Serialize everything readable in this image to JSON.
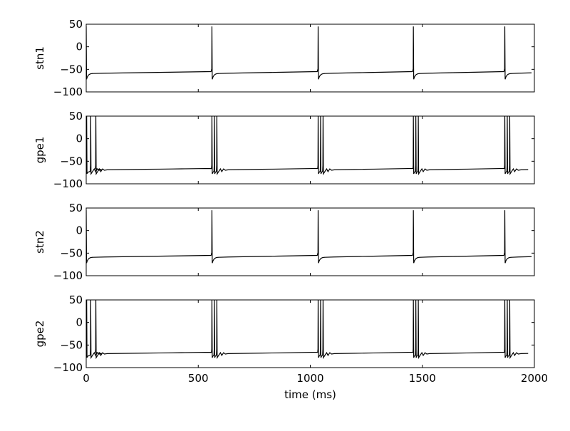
{
  "chart_data": {
    "type": "line",
    "xlabel": "time (ms)",
    "xlim": [
      0,
      2000
    ],
    "x_ticks": [
      "0",
      "500",
      "1000",
      "1500",
      "2000"
    ],
    "ylim": [
      -100,
      50
    ],
    "line_color": "#000000",
    "grid": false,
    "legend": "none",
    "panels": [
      {
        "ylabel": "stn1",
        "y_ticks": [
          "50",
          "0",
          "−50",
          "−100"
        ],
        "neuron": "stn",
        "baseline_mv": -59,
        "peak_mv": 45,
        "trough_mv": -72,
        "initial_spike_ms": [
          0
        ],
        "burst_onsets_ms": [
          561,
          1035,
          1460,
          1868
        ],
        "spikes_per_burst": 1
      },
      {
        "ylabel": "gpe1",
        "y_ticks": [
          "50",
          "0",
          "−50",
          "−100"
        ],
        "neuron": "gpe",
        "baseline_mv": -69,
        "peak_mv": 50,
        "trough_mv": -78,
        "initial_spike_ms": [
          2,
          20,
          43
        ],
        "burst_onsets_ms": [
          561,
          1035,
          1460,
          1868
        ],
        "spikes_per_burst": 3
      },
      {
        "ylabel": "stn2",
        "y_ticks": [
          "50",
          "0",
          "−50",
          "−100"
        ],
        "neuron": "stn",
        "baseline_mv": -59,
        "peak_mv": 45,
        "trough_mv": -72,
        "initial_spike_ms": [
          0
        ],
        "burst_onsets_ms": [
          561,
          1035,
          1460,
          1868
        ],
        "spikes_per_burst": 1
      },
      {
        "ylabel": "gpe2",
        "y_ticks": [
          "50",
          "0",
          "−50",
          "−100"
        ],
        "neuron": "gpe",
        "baseline_mv": -69,
        "peak_mv": 50,
        "trough_mv": -78,
        "initial_spike_ms": [
          2,
          20,
          43
        ],
        "burst_onsets_ms": [
          561,
          1035,
          1460,
          1868
        ],
        "spikes_per_burst": 3
      }
    ]
  }
}
